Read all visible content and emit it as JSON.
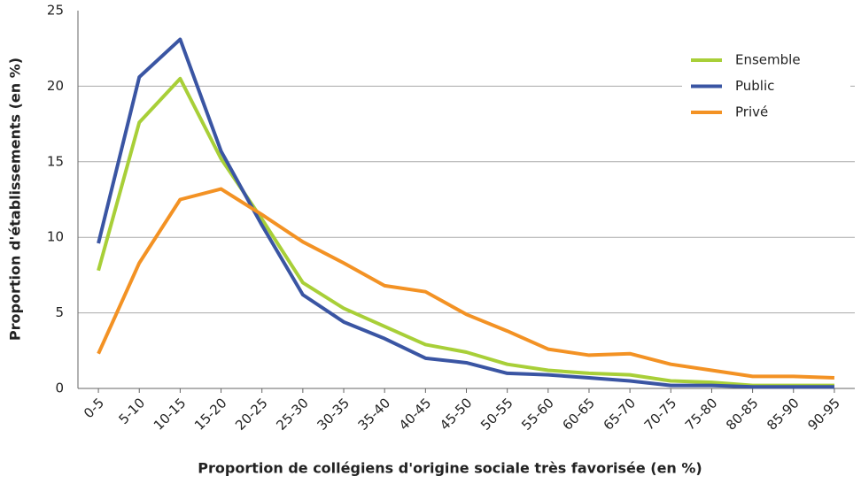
{
  "chart_data": {
    "type": "line",
    "xlabel": "Proportion de collégiens d'origine sociale très favorisée (en %)",
    "ylabel": "Proportion d'établissements (en %)",
    "categories": [
      "0-5",
      "5-10",
      "10-15",
      "15-20",
      "20-25",
      "25-30",
      "30-35",
      "35-40",
      "40-45",
      "45-50",
      "50-55",
      "55-60",
      "60-65",
      "65-70",
      "70-75",
      "75-80",
      "80-85",
      "85-90",
      "90-95"
    ],
    "series": [
      {
        "name": "Ensemble",
        "color": "#a8cf38",
        "values": [
          7.8,
          17.6,
          20.5,
          15.2,
          11.2,
          7.0,
          5.3,
          4.1,
          2.9,
          2.4,
          1.6,
          1.2,
          1.0,
          0.9,
          0.5,
          0.4,
          0.2,
          0.2,
          0.2
        ]
      },
      {
        "name": "Public",
        "color": "#3a55a3",
        "values": [
          9.6,
          20.6,
          23.1,
          15.7,
          10.8,
          6.2,
          4.4,
          3.3,
          2.0,
          1.7,
          1.0,
          0.9,
          0.7,
          0.5,
          0.2,
          0.2,
          0.1,
          0.1,
          0.1
        ]
      },
      {
        "name": "Privé",
        "color": "#f39224",
        "values": [
          2.3,
          8.3,
          12.5,
          13.2,
          11.5,
          9.7,
          8.3,
          6.8,
          6.4,
          4.9,
          3.8,
          2.6,
          2.2,
          2.3,
          1.6,
          1.2,
          0.8,
          0.8,
          0.7
        ]
      }
    ],
    "ylim": [
      0,
      25
    ],
    "yticks": [
      0,
      5,
      10,
      15,
      20,
      25
    ],
    "grid": true,
    "legend": "upper right"
  }
}
